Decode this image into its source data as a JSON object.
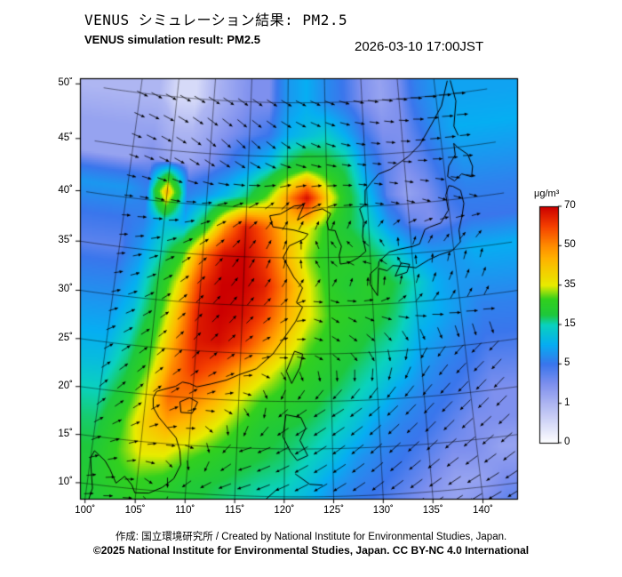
{
  "header": {
    "title_jp": "VENUS シミュレーション結果: PM2.5",
    "title_en": "VENUS simulation result: PM2.5",
    "timestamp": "2026-03-10 17:00JST"
  },
  "footer": {
    "credit": "作成: 国立環境研究所 / Created by National Institute for Environmental Studies, Japan.",
    "copyright": "©2025 National Institute for Environmental Studies, Japan. CC BY-NC 4.0 International"
  },
  "chart_data": {
    "type": "heatmap",
    "title": "VENUS simulation result: PM2.5",
    "variable": "PM2.5",
    "units": "μg/m³",
    "timestamp": "2026-03-10 17:00JST",
    "projection": "lambert-conformal-conic",
    "map_window": {
      "lon_min": 99.3,
      "lon_max": 143.6,
      "lat_min": 9.8,
      "lat_max": 51.0,
      "center_lon": 121.5,
      "std_parallels": [
        5,
        35
      ]
    },
    "axes": {
      "lon_ticks": [
        100,
        105,
        110,
        115,
        120,
        125,
        130,
        135,
        140
      ],
      "lat_ticks": [
        10,
        15,
        20,
        25,
        30,
        35,
        40,
        45,
        50
      ],
      "degree_symbol": "˚"
    },
    "colorbar": {
      "title": "μg/m³",
      "tick_values": [
        0,
        1,
        5,
        15,
        35,
        50,
        70
      ],
      "gradient_stops": [
        [
          0,
          "#ffffff"
        ],
        [
          1,
          "#aeb6f2"
        ],
        [
          3,
          "#7e90ee"
        ],
        [
          5,
          "#3a76ec"
        ],
        [
          10,
          "#06aef2"
        ],
        [
          15,
          "#0ad2be"
        ],
        [
          20,
          "#1ec83c"
        ],
        [
          28,
          "#32d01e"
        ],
        [
          35,
          "#e8ec00"
        ],
        [
          45,
          "#ffb400"
        ],
        [
          50,
          "#ff8c00"
        ],
        [
          60,
          "#f54000"
        ],
        [
          70,
          "#cc0000"
        ]
      ]
    },
    "pm25_grid": {
      "lons": [
        100,
        102.5,
        105,
        107.5,
        110,
        112.5,
        115,
        117.5,
        120,
        122.5,
        125,
        127.5,
        130,
        132.5,
        135,
        137.5,
        140,
        142.5
      ],
      "lats": [
        50,
        47,
        44,
        41,
        38,
        35,
        32,
        29,
        26,
        23,
        20,
        17,
        14,
        11,
        8
      ],
      "values": [
        [
          1,
          1,
          0.5,
          0.5,
          1,
          2,
          3,
          3,
          8,
          10,
          7,
          5,
          3,
          2,
          3,
          6,
          8,
          9
        ],
        [
          2,
          2,
          1,
          1,
          2,
          3,
          4,
          5,
          10,
          12,
          14,
          10,
          5,
          3,
          3,
          5,
          8,
          10
        ],
        [
          2,
          3,
          2,
          2,
          3,
          5,
          8,
          12,
          20,
          25,
          22,
          18,
          8,
          4,
          3,
          4,
          6,
          8
        ],
        [
          8,
          6,
          45,
          6,
          8,
          12,
          18,
          30,
          48,
          68,
          40,
          22,
          12,
          4,
          2,
          3,
          5,
          6
        ],
        [
          5,
          6,
          12,
          10,
          22,
          48,
          66,
          55,
          42,
          36,
          26,
          20,
          15,
          8,
          4,
          3,
          4,
          5
        ],
        [
          4,
          8,
          15,
          26,
          52,
          68,
          70,
          60,
          45,
          32,
          24,
          25,
          20,
          15,
          10,
          8,
          8,
          10
        ],
        [
          6,
          10,
          20,
          36,
          62,
          70,
          70,
          65,
          50,
          36,
          26,
          22,
          25,
          20,
          15,
          10,
          8,
          8
        ],
        [
          8,
          12,
          22,
          42,
          66,
          70,
          68,
          60,
          46,
          36,
          28,
          25,
          22,
          18,
          12,
          10,
          8,
          6
        ],
        [
          10,
          15,
          26,
          46,
          66,
          68,
          62,
          50,
          40,
          30,
          25,
          22,
          18,
          15,
          10,
          8,
          6,
          5
        ],
        [
          12,
          18,
          30,
          50,
          62,
          56,
          46,
          38,
          30,
          26,
          22,
          18,
          15,
          12,
          8,
          6,
          5,
          4
        ],
        [
          15,
          22,
          36,
          55,
          52,
          45,
          35,
          28,
          25,
          22,
          18,
          15,
          12,
          8,
          6,
          5,
          4,
          3
        ],
        [
          18,
          26,
          40,
          46,
          42,
          35,
          28,
          22,
          20,
          18,
          15,
          12,
          8,
          6,
          5,
          4,
          3,
          3
        ],
        [
          20,
          28,
          36,
          36,
          30,
          26,
          22,
          20,
          18,
          15,
          12,
          8,
          6,
          5,
          4,
          3,
          3,
          2
        ],
        [
          22,
          26,
          28,
          26,
          22,
          20,
          18,
          16,
          15,
          12,
          8,
          6,
          5,
          4,
          3,
          2,
          2,
          3
        ],
        [
          20,
          22,
          25,
          22,
          20,
          18,
          16,
          15,
          12,
          10,
          6,
          5,
          4,
          3,
          2,
          2,
          3,
          4
        ]
      ]
    },
    "wind": {
      "lons": [
        100,
        105,
        110,
        115,
        120,
        125,
        130,
        135,
        140
      ],
      "lats": [
        50,
        45,
        40,
        35,
        30,
        25,
        20,
        15,
        10
      ],
      "dir_deg": [
        [
          -20,
          -25,
          -30,
          -35,
          -30,
          -25,
          -15,
          -10,
          -5
        ],
        [
          -15,
          -25,
          -40,
          -45,
          -35,
          -20,
          -10,
          -5,
          0
        ],
        [
          0,
          -10,
          10,
          30,
          50,
          20,
          -10,
          -20,
          -25
        ],
        [
          10,
          25,
          45,
          60,
          80,
          160,
          190,
          100,
          70
        ],
        [
          20,
          35,
          50,
          55,
          40,
          -40,
          -10,
          40,
          55
        ],
        [
          35,
          45,
          50,
          40,
          10,
          -30,
          -60,
          -120,
          -140
        ],
        [
          50,
          45,
          30,
          0,
          -140,
          -150,
          -140,
          -135,
          -140
        ],
        [
          30,
          20,
          -10,
          -160,
          -150,
          -145,
          -140,
          -140,
          -145
        ],
        [
          10,
          0,
          -170,
          -160,
          -155,
          -150,
          -145,
          -150,
          -155
        ]
      ],
      "rel_speed": [
        [
          0.9,
          0.9,
          1.0,
          0.9,
          0.9,
          0.8,
          0.8,
          0.8,
          0.9
        ],
        [
          0.8,
          0.9,
          1.0,
          1.0,
          0.9,
          0.8,
          0.7,
          0.7,
          0.8
        ],
        [
          0.7,
          0.8,
          0.8,
          0.9,
          0.9,
          0.8,
          0.7,
          0.7,
          0.7
        ],
        [
          0.7,
          0.8,
          0.9,
          0.9,
          0.8,
          0.7,
          0.7,
          0.8,
          0.8
        ],
        [
          0.8,
          0.9,
          0.9,
          0.9,
          0.8,
          0.8,
          0.8,
          0.9,
          0.9
        ],
        [
          0.9,
          0.9,
          0.9,
          0.8,
          0.7,
          0.8,
          1.0,
          1.1,
          1.2
        ],
        [
          1.0,
          0.9,
          0.8,
          0.7,
          1.0,
          1.2,
          1.3,
          1.3,
          1.3
        ],
        [
          0.9,
          0.8,
          0.8,
          1.1,
          1.3,
          1.35,
          1.35,
          1.3,
          1.3
        ],
        [
          0.8,
          0.8,
          1.0,
          1.2,
          1.3,
          1.3,
          1.3,
          1.3,
          1.3
        ]
      ]
    },
    "coastlines": [
      [
        [
          141.8,
          51.2
        ],
        [
          140.6,
          49.0
        ],
        [
          139.0,
          47.4
        ],
        [
          137.2,
          45.6
        ],
        [
          135.6,
          44.6
        ],
        [
          133.2,
          43.5
        ],
        [
          131.6,
          43.1
        ],
        [
          130.6,
          42.3
        ],
        [
          129.8,
          41.6
        ],
        [
          129.7,
          40.2
        ],
        [
          129.0,
          39.8
        ],
        [
          129.4,
          38.6
        ],
        [
          129.2,
          37.0
        ],
        [
          129.5,
          35.5
        ],
        [
          128.6,
          34.9
        ],
        [
          127.4,
          34.4
        ],
        [
          126.4,
          34.3
        ],
        [
          126.3,
          35.2
        ],
        [
          126.6,
          36.1
        ],
        [
          126.2,
          36.9
        ],
        [
          125.9,
          37.7
        ],
        [
          125.1,
          37.8
        ],
        [
          124.9,
          38.6
        ],
        [
          125.4,
          39.4
        ],
        [
          124.4,
          39.9
        ],
        [
          123.3,
          39.7
        ],
        [
          122.3,
          39.3
        ],
        [
          121.3,
          38.8
        ],
        [
          122.1,
          40.3
        ],
        [
          120.9,
          40.2
        ],
        [
          119.2,
          39.4
        ],
        [
          117.9,
          39.2
        ],
        [
          118.3,
          38.1
        ],
        [
          120.9,
          37.8
        ],
        [
          122.6,
          37.4
        ],
        [
          122.1,
          36.9
        ],
        [
          120.3,
          36.2
        ],
        [
          119.6,
          35.0
        ],
        [
          120.9,
          33.0
        ],
        [
          121.9,
          31.9
        ],
        [
          121.2,
          30.4
        ],
        [
          121.9,
          29.9
        ],
        [
          121.1,
          28.4
        ],
        [
          119.9,
          26.8
        ],
        [
          118.6,
          25.0
        ],
        [
          116.8,
          23.4
        ],
        [
          114.9,
          22.7
        ],
        [
          113.6,
          22.1
        ],
        [
          111.9,
          21.6
        ],
        [
          110.4,
          21.2
        ],
        [
          109.6,
          21.5
        ],
        [
          108.8,
          21.6
        ],
        [
          108.1,
          21.1
        ],
        [
          106.9,
          20.7
        ],
        [
          106.1,
          20.4
        ],
        [
          105.8,
          19.7
        ],
        [
          105.9,
          18.7
        ],
        [
          106.6,
          17.7
        ],
        [
          107.6,
          16.7
        ],
        [
          108.6,
          15.7
        ],
        [
          109.1,
          14.4
        ],
        [
          109.3,
          12.9
        ],
        [
          108.7,
          11.4
        ],
        [
          107.6,
          10.4
        ],
        [
          106.3,
          9.7
        ],
        [
          104.9,
          9.6
        ],
        [
          104.5,
          10.4
        ],
        [
          103.7,
          11.2
        ],
        [
          102.9,
          10.4
        ],
        [
          102.1,
          11.8
        ],
        [
          101.5,
          12.6
        ],
        [
          100.3,
          13.5
        ],
        [
          100.0,
          12.7
        ],
        [
          100.2,
          11.6
        ],
        [
          100.6,
          9.6
        ],
        [
          100.3,
          8.0
        ]
      ],
      [
        [
          130.6,
          30.9
        ],
        [
          129.8,
          32.1
        ],
        [
          129.9,
          33.2
        ],
        [
          130.9,
          33.9
        ],
        [
          131.0,
          34.4
        ],
        [
          132.3,
          35.3
        ],
        [
          133.4,
          35.5
        ],
        [
          135.2,
          35.7
        ],
        [
          136.0,
          35.9
        ],
        [
          136.8,
          37.3
        ],
        [
          137.4,
          37.5
        ],
        [
          138.8,
          37.8
        ],
        [
          139.9,
          39.0
        ],
        [
          139.8,
          40.5
        ],
        [
          140.3,
          41.4
        ],
        [
          140.8,
          41.3
        ],
        [
          141.7,
          40.8
        ],
        [
          141.9,
          39.5
        ],
        [
          141.5,
          38.3
        ],
        [
          140.9,
          36.9
        ],
        [
          140.9,
          35.7
        ],
        [
          139.8,
          34.9
        ],
        [
          138.2,
          34.6
        ],
        [
          136.9,
          34.2
        ],
        [
          135.3,
          33.5
        ],
        [
          134.2,
          33.7
        ],
        [
          132.6,
          33.9
        ],
        [
          131.9,
          33.4
        ],
        [
          130.9,
          33.7
        ],
        [
          130.6,
          30.9
        ]
      ],
      [
        [
          140.3,
          42.3
        ],
        [
          141.1,
          41.8
        ],
        [
          142.1,
          42.4
        ],
        [
          143.3,
          42.0
        ],
        [
          143.6,
          43.0
        ],
        [
          143.2,
          44.2
        ],
        [
          142.0,
          45.0
        ],
        [
          141.6,
          45.4
        ],
        [
          141.6,
          44.3
        ],
        [
          140.6,
          43.3
        ],
        [
          140.3,
          42.3
        ]
      ],
      [
        [
          132.8,
          32.8
        ],
        [
          134.2,
          33.1
        ],
        [
          134.6,
          33.9
        ],
        [
          133.6,
          34.1
        ],
        [
          132.8,
          32.8
        ]
      ],
      [
        [
          121.0,
          25.3
        ],
        [
          121.9,
          25.0
        ],
        [
          121.6,
          23.6
        ],
        [
          120.7,
          21.9
        ],
        [
          120.1,
          23.2
        ],
        [
          121.0,
          25.3
        ]
      ],
      [
        [
          108.7,
          19.5
        ],
        [
          109.7,
          20.0
        ],
        [
          110.6,
          19.6
        ],
        [
          110.1,
          18.4
        ],
        [
          108.9,
          18.4
        ],
        [
          108.7,
          19.5
        ]
      ],
      [
        [
          120.1,
          18.6
        ],
        [
          121.7,
          18.3
        ],
        [
          122.2,
          17.2
        ],
        [
          121.6,
          15.9
        ],
        [
          122.4,
          14.3
        ],
        [
          121.3,
          13.8
        ],
        [
          120.6,
          14.7
        ],
        [
          119.8,
          16.3
        ],
        [
          120.1,
          18.6
        ]
      ],
      [
        [
          117.2,
          8.8
        ],
        [
          119.4,
          10.9
        ]
      ],
      [
        [
          121.1,
          12.4
        ],
        [
          122.6,
          11.3
        ],
        [
          123.9,
          11.2
        ]
      ],
      [
        [
          142.2,
          51.2
        ],
        [
          142.6,
          49.3
        ],
        [
          141.9,
          47.0
        ],
        [
          142.3,
          46.1
        ]
      ]
    ]
  }
}
